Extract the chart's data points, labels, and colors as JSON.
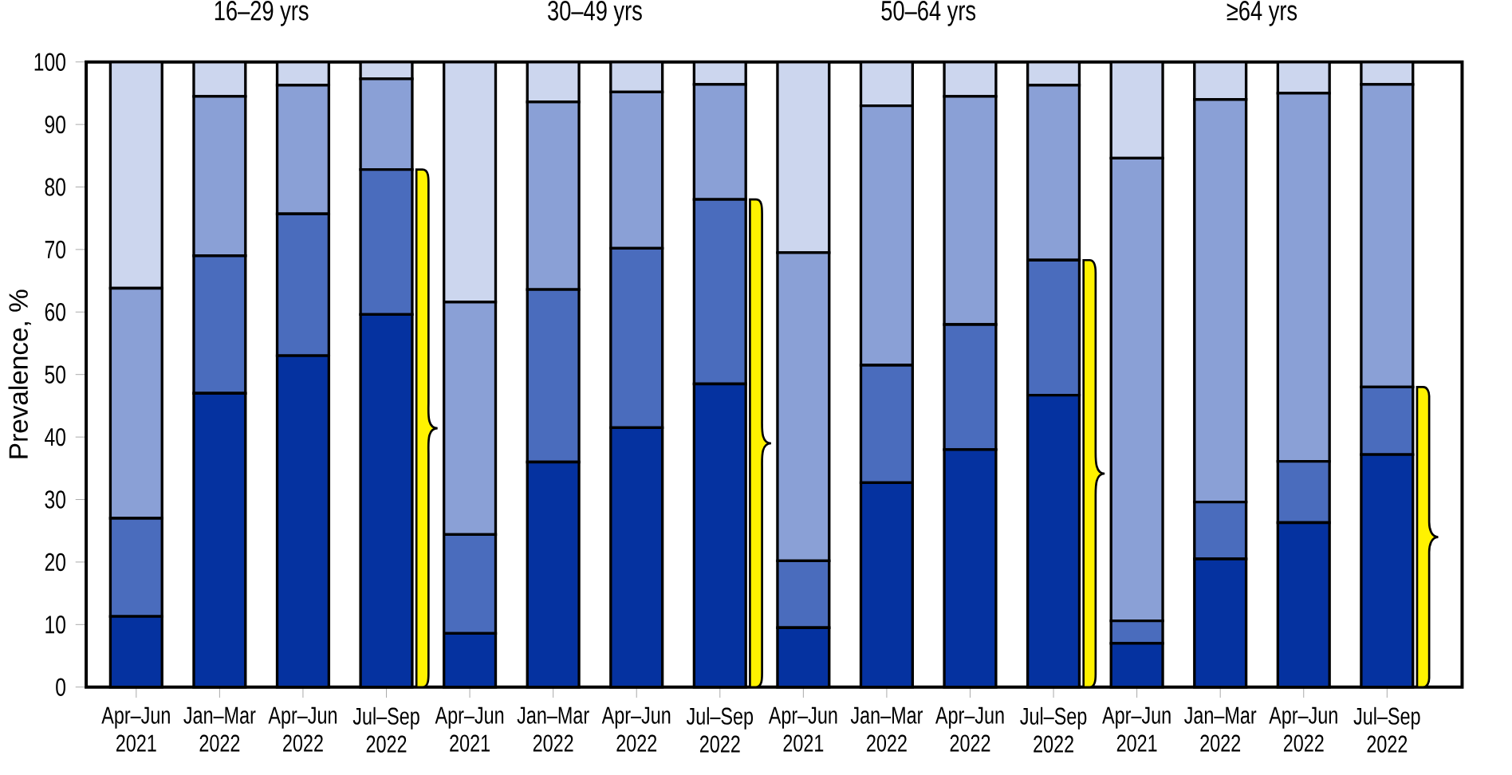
{
  "chart_data": {
    "type": "bar",
    "stacked": true,
    "ylabel": "Prevalence, %",
    "annotations": [
      "16–29 yrs",
      "30–49 yrs",
      "50–64 yrs",
      "≥64 yrs"
    ],
    "categories": [
      "Apr–Jun 2021",
      "Jan–Mar 2022",
      "Apr–Jun 2022",
      "Jul–Sep 2022",
      "Apr–Jun 2021",
      "Jan–Mar 2022",
      "Apr–Jun 2022",
      "Jul–Sep 2022",
      "Apr–Jun 2021",
      "Jan–Mar 2022",
      "Apr–Jun 2022",
      "Jul–Sep 2022",
      "Apr–Jun 2021",
      "Jan–Mar 2022",
      "Apr–Jun 2022",
      "Jul–Sep 2022"
    ],
    "series": [
      {
        "color": "#0532a0",
        "values": [
          11.3,
          47,
          53,
          59.6,
          8.6,
          36,
          41.5,
          48.5,
          9.5,
          32.7,
          38,
          46.7,
          7,
          20.5,
          26.3,
          37.2
        ]
      },
      {
        "color": "#4a6cbd",
        "values": [
          15.7,
          22,
          22.7,
          23.2,
          15.8,
          27.6,
          28.7,
          29.5,
          10.7,
          18.8,
          20,
          21.6,
          3.6,
          9.1,
          9.8,
          10.8
        ]
      },
      {
        "color": "#8aa0d6",
        "values": [
          36.8,
          25.5,
          20.6,
          14.5,
          37.2,
          30,
          25,
          18.4,
          49.3,
          41.5,
          36.5,
          28,
          74,
          64.4,
          58.9,
          48.4
        ]
      },
      {
        "color": "#ccd6ee",
        "values": [
          36.2,
          5.5,
          3.7,
          2.7,
          38.4,
          6.4,
          4.8,
          3.6,
          30.5,
          7,
          5.5,
          3.7,
          15.4,
          6,
          5,
          3.6
        ]
      }
    ],
    "ylim": [
      0,
      100
    ],
    "yticks": [
      0,
      10,
      20,
      30,
      40,
      50,
      60,
      70,
      80,
      90,
      100
    ]
  }
}
